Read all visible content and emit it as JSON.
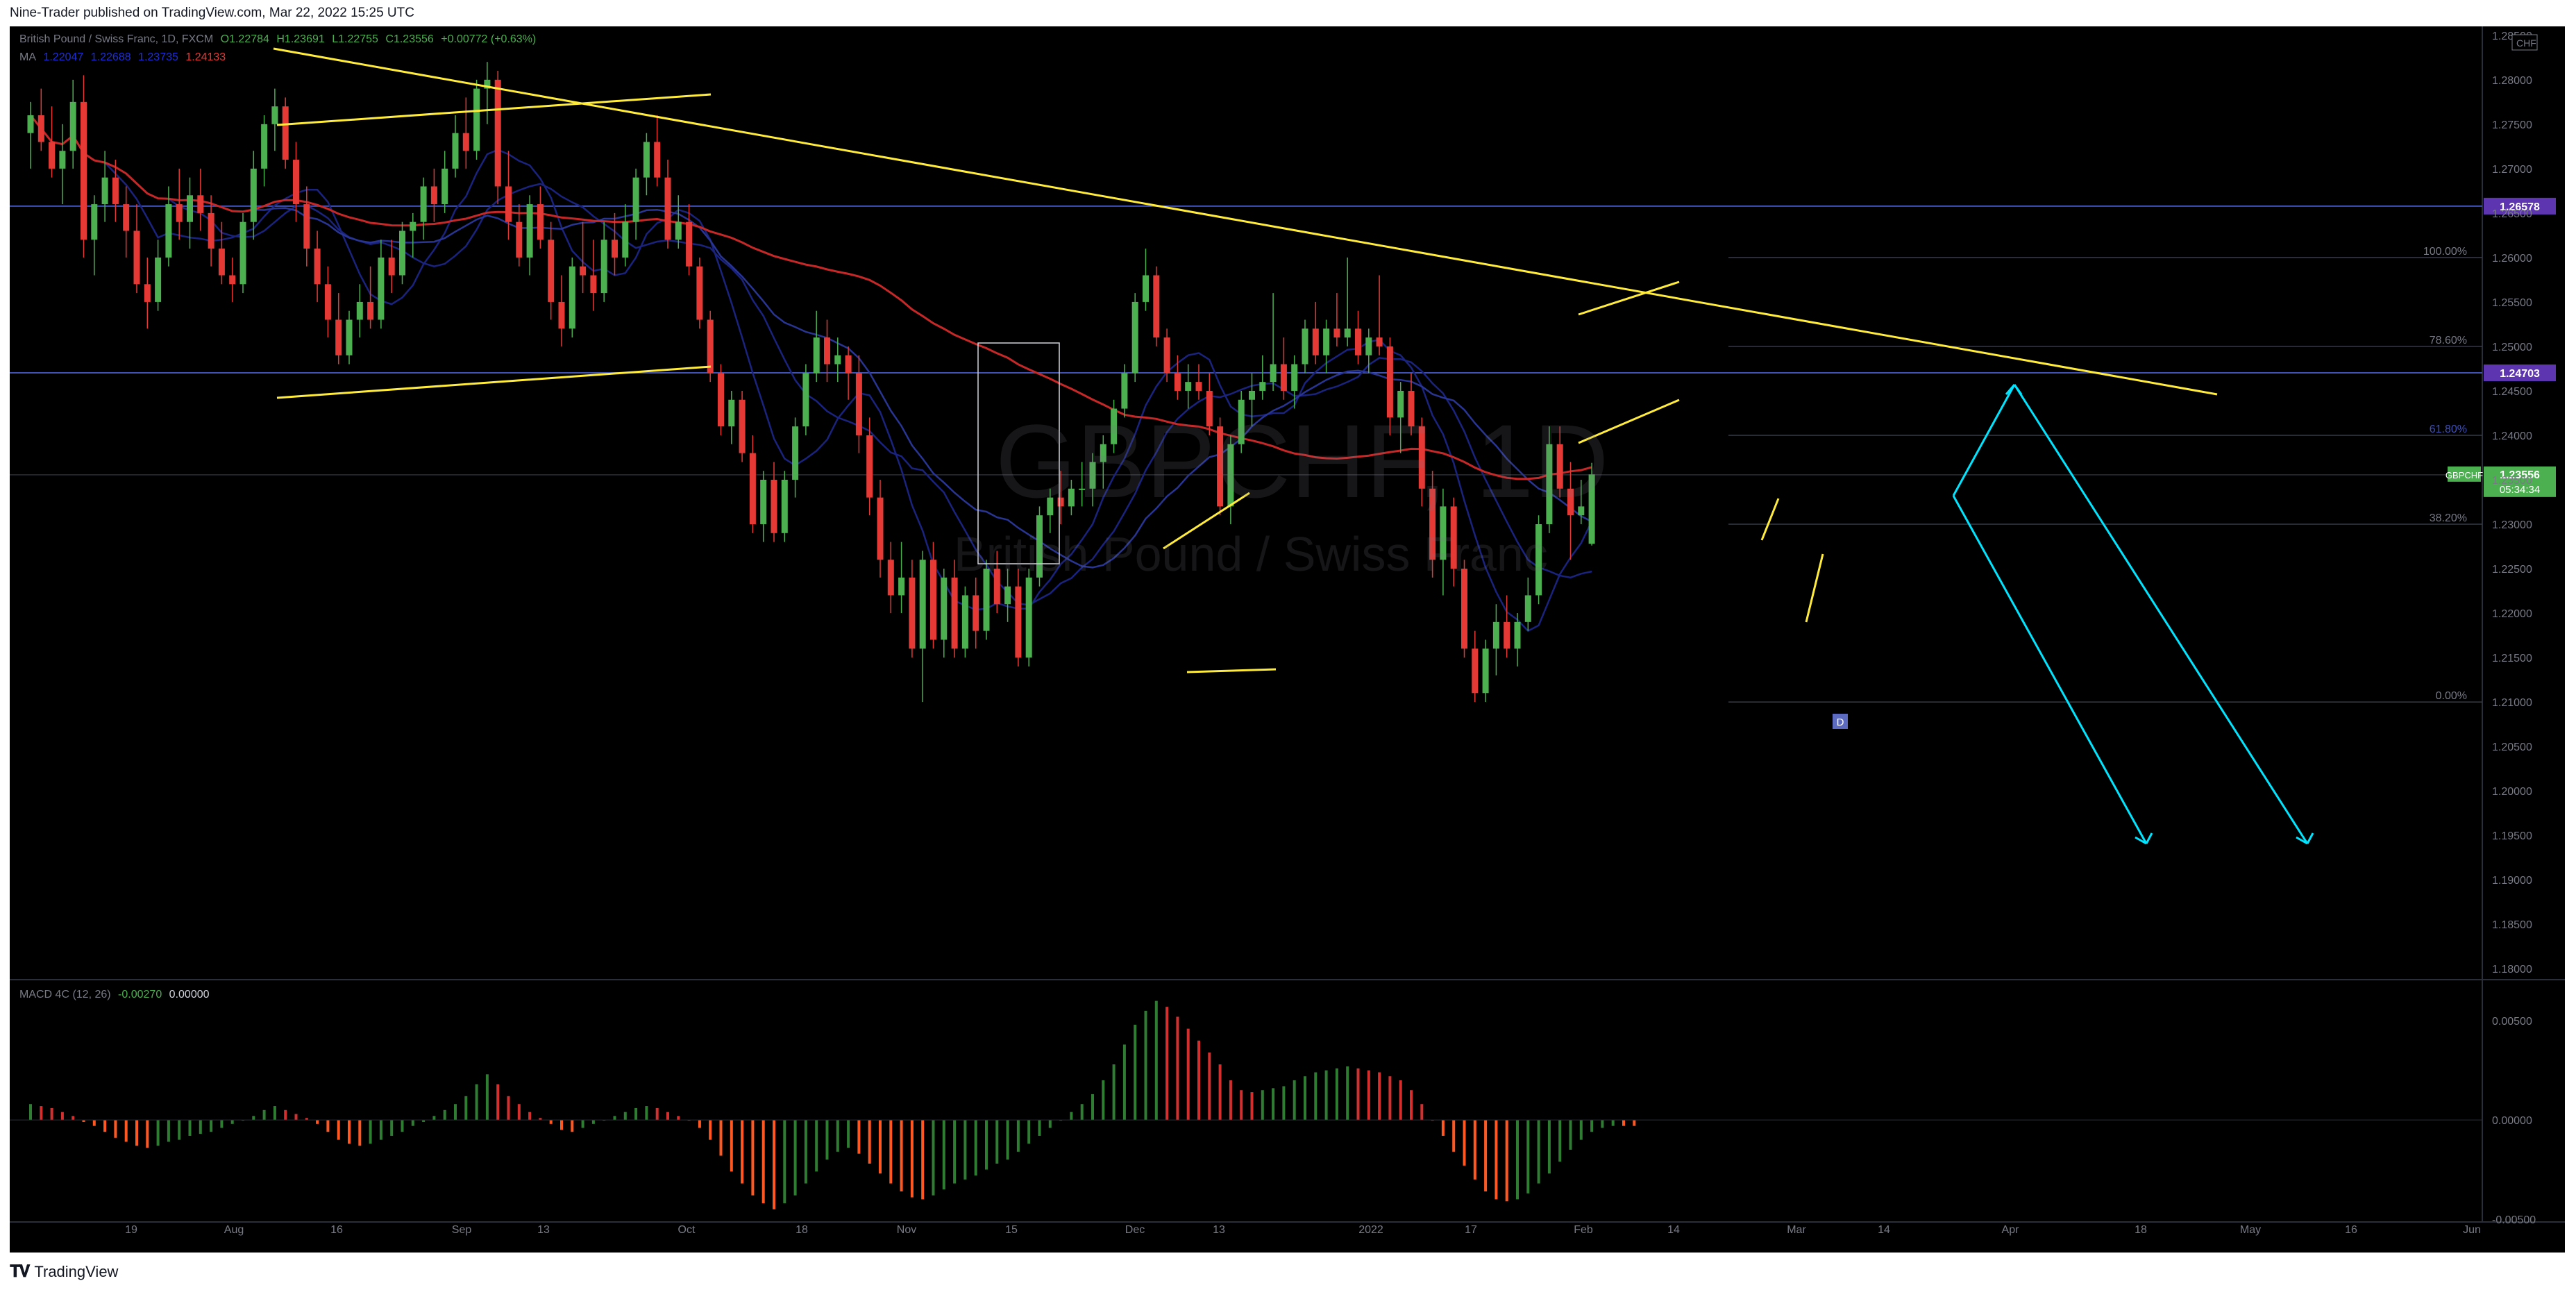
{
  "header": {
    "published_by": "Nine-Trader published on TradingView.com, Mar 22, 2022 15:25 UTC"
  },
  "legend": {
    "title": "British Pound / Swiss Franc, 1D, FXCM",
    "ohlc": {
      "o": "O1.22784",
      "h": "H1.23691",
      "l": "L1.22755",
      "c": "C1.23556",
      "chg": "+0.00772 (+0.63%)"
    },
    "ma_label": "MA",
    "ma_values": [
      {
        "text": "1.22047",
        "color": "#1e2fd6"
      },
      {
        "text": "1.22688",
        "color": "#1e2fd6"
      },
      {
        "text": "1.23735",
        "color": "#1e2fd6"
      },
      {
        "text": "1.24133",
        "color": "#e53935"
      }
    ],
    "macd_label": "MACD 4C (12, 26)",
    "macd_val1": "-0.00270",
    "macd_val2": "0.00000"
  },
  "watermark": {
    "symbol": "GBPCHF, 1D",
    "description": "British Pound / Swiss Franc"
  },
  "footer": {
    "brand": "TradingView"
  },
  "colors": {
    "up": "#4caf50",
    "down": "#e53935",
    "trendline": "#ffeb3b",
    "projection": "#00e5ff",
    "ma200": "#c62828",
    "ma_blue": "#1a237e",
    "level_line": "#3f51b5",
    "price_tag": "#4caf50",
    "level_tag": "#5e35b1",
    "macd_pos_up": "#2e7d32",
    "macd_pos_down": "#d32f2f",
    "macd_neg_down": "#ff5722",
    "macd_neg_up": "#2e7d32"
  },
  "chart_data": {
    "type": "candlestick",
    "symbol": "GBPCHF",
    "title": "British Pound / Swiss Franc, 1D, FXCM",
    "timeframe": "1D",
    "price_axis": {
      "ticks": [
        "1.28500",
        "1.28000",
        "1.27500",
        "1.27000",
        "1.26500",
        "1.26000",
        "1.25500",
        "1.25000",
        "1.24500",
        "1.24000",
        "1.23500",
        "1.23000",
        "1.22500",
        "1.22000",
        "1.21500",
        "1.21000",
        "1.20500",
        "1.20000",
        "1.19500",
        "1.19000",
        "1.18500",
        "1.18000"
      ],
      "currency": "CHF"
    },
    "time_axis": {
      "labels": [
        "19",
        "Aug",
        "16",
        "Sep",
        "13",
        "Oct",
        "18",
        "Nov",
        "15",
        "Dec",
        "13",
        "2022",
        "17",
        "Feb",
        "14",
        "Mar",
        "14",
        "Apr",
        "18",
        "May",
        "16",
        "Jun"
      ]
    },
    "fibonacci": [
      {
        "level": "100.00%",
        "price": 1.26
      },
      {
        "level": "78.60%",
        "price": 1.25
      },
      {
        "level": "61.80%",
        "price": 1.24
      },
      {
        "level": "38.20%",
        "price": 1.23
      },
      {
        "level": "0.00%",
        "price": 1.21
      }
    ],
    "horizontal_levels": [
      {
        "label": "1.26578",
        "price": 1.26578
      },
      {
        "label": "1.24703",
        "price": 1.24703
      }
    ],
    "last_price": {
      "symbol_tag": "GBPCHF",
      "price": "1.23556",
      "countdown": "05:34:34"
    },
    "point_label": "D",
    "candles": [
      [
        1.274,
        1.2775,
        1.27,
        1.276
      ],
      [
        1.276,
        1.279,
        1.272,
        1.273
      ],
      [
        1.273,
        1.277,
        1.269,
        1.27
      ],
      [
        1.27,
        1.275,
        1.266,
        1.272
      ],
      [
        1.272,
        1.28,
        1.27,
        1.2775
      ],
      [
        1.2775,
        1.2805,
        1.26,
        1.262
      ],
      [
        1.262,
        1.267,
        1.258,
        1.266
      ],
      [
        1.266,
        1.272,
        1.264,
        1.269
      ],
      [
        1.269,
        1.271,
        1.264,
        1.266
      ],
      [
        1.266,
        1.268,
        1.26,
        1.263
      ],
      [
        1.263,
        1.266,
        1.256,
        1.257
      ],
      [
        1.257,
        1.26,
        1.252,
        1.255
      ],
      [
        1.255,
        1.262,
        1.254,
        1.26
      ],
      [
        1.26,
        1.268,
        1.259,
        1.266
      ],
      [
        1.266,
        1.27,
        1.262,
        1.264
      ],
      [
        1.264,
        1.269,
        1.261,
        1.267
      ],
      [
        1.267,
        1.27,
        1.263,
        1.265
      ],
      [
        1.265,
        1.267,
        1.259,
        1.261
      ],
      [
        1.261,
        1.264,
        1.257,
        1.258
      ],
      [
        1.258,
        1.26,
        1.255,
        1.257
      ],
      [
        1.257,
        1.265,
        1.256,
        1.264
      ],
      [
        1.264,
        1.272,
        1.262,
        1.27
      ],
      [
        1.27,
        1.276,
        1.268,
        1.275
      ],
      [
        1.275,
        1.279,
        1.272,
        1.277
      ],
      [
        1.277,
        1.278,
        1.27,
        1.271
      ],
      [
        1.271,
        1.273,
        1.264,
        1.266
      ],
      [
        1.266,
        1.268,
        1.259,
        1.261
      ],
      [
        1.261,
        1.263,
        1.255,
        1.257
      ],
      [
        1.257,
        1.259,
        1.251,
        1.253
      ],
      [
        1.253,
        1.256,
        1.248,
        1.249
      ],
      [
        1.249,
        1.254,
        1.248,
        1.253
      ],
      [
        1.253,
        1.257,
        1.251,
        1.255
      ],
      [
        1.255,
        1.259,
        1.252,
        1.253
      ],
      [
        1.253,
        1.262,
        1.252,
        1.26
      ],
      [
        1.26,
        1.262,
        1.256,
        1.258
      ],
      [
        1.258,
        1.264,
        1.257,
        1.263
      ],
      [
        1.263,
        1.265,
        1.26,
        1.264
      ],
      [
        1.264,
        1.269,
        1.262,
        1.268
      ],
      [
        1.268,
        1.27,
        1.264,
        1.266
      ],
      [
        1.266,
        1.272,
        1.265,
        1.27
      ],
      [
        1.27,
        1.276,
        1.269,
        1.274
      ],
      [
        1.274,
        1.278,
        1.27,
        1.272
      ],
      [
        1.272,
        1.28,
        1.271,
        1.279
      ],
      [
        1.279,
        1.282,
        1.275,
        1.28
      ],
      [
        1.28,
        1.281,
        1.266,
        1.268
      ],
      [
        1.268,
        1.272,
        1.262,
        1.264
      ],
      [
        1.264,
        1.266,
        1.259,
        1.26
      ],
      [
        1.26,
        1.267,
        1.258,
        1.266
      ],
      [
        1.266,
        1.268,
        1.261,
        1.262
      ],
      [
        1.262,
        1.264,
        1.253,
        1.255
      ],
      [
        1.255,
        1.258,
        1.25,
        1.252
      ],
      [
        1.252,
        1.26,
        1.251,
        1.259
      ],
      [
        1.259,
        1.264,
        1.256,
        1.258
      ],
      [
        1.258,
        1.262,
        1.254,
        1.256
      ],
      [
        1.256,
        1.264,
        1.255,
        1.262
      ],
      [
        1.262,
        1.265,
        1.258,
        1.26
      ],
      [
        1.26,
        1.266,
        1.259,
        1.264
      ],
      [
        1.264,
        1.27,
        1.262,
        1.269
      ],
      [
        1.269,
        1.274,
        1.267,
        1.273
      ],
      [
        1.273,
        1.276,
        1.268,
        1.269
      ],
      [
        1.269,
        1.271,
        1.261,
        1.262
      ],
      [
        1.262,
        1.267,
        1.261,
        1.264
      ],
      [
        1.264,
        1.266,
        1.258,
        1.259
      ],
      [
        1.259,
        1.26,
        1.252,
        1.253
      ],
      [
        1.253,
        1.254,
        1.246,
        1.247
      ],
      [
        1.247,
        1.248,
        1.24,
        1.241
      ],
      [
        1.241,
        1.245,
        1.239,
        1.244
      ],
      [
        1.244,
        1.245,
        1.237,
        1.238
      ],
      [
        1.238,
        1.24,
        1.229,
        1.23
      ],
      [
        1.23,
        1.236,
        1.228,
        1.235
      ],
      [
        1.235,
        1.237,
        1.228,
        1.229
      ],
      [
        1.229,
        1.236,
        1.228,
        1.235
      ],
      [
        1.235,
        1.242,
        1.233,
        1.241
      ],
      [
        1.241,
        1.248,
        1.24,
        1.247
      ],
      [
        1.247,
        1.254,
        1.246,
        1.251
      ],
      [
        1.251,
        1.253,
        1.246,
        1.248
      ],
      [
        1.248,
        1.251,
        1.246,
        1.249
      ],
      [
        1.249,
        1.25,
        1.244,
        1.247
      ],
      [
        1.247,
        1.249,
        1.238,
        1.24
      ],
      [
        1.24,
        1.242,
        1.231,
        1.233
      ],
      [
        1.233,
        1.235,
        1.224,
        1.226
      ],
      [
        1.226,
        1.228,
        1.22,
        1.222
      ],
      [
        1.222,
        1.228,
        1.22,
        1.224
      ],
      [
        1.224,
        1.226,
        1.215,
        1.216
      ],
      [
        1.216,
        1.227,
        1.21,
        1.226
      ],
      [
        1.226,
        1.228,
        1.216,
        1.217
      ],
      [
        1.217,
        1.225,
        1.215,
        1.224
      ],
      [
        1.224,
        1.226,
        1.215,
        1.216
      ],
      [
        1.216,
        1.223,
        1.215,
        1.222
      ],
      [
        1.222,
        1.224,
        1.216,
        1.218
      ],
      [
        1.218,
        1.226,
        1.217,
        1.225
      ],
      [
        1.225,
        1.227,
        1.22,
        1.221
      ],
      [
        1.221,
        1.225,
        1.219,
        1.223
      ],
      [
        1.223,
        1.225,
        1.214,
        1.215
      ],
      [
        1.215,
        1.225,
        1.214,
        1.224
      ],
      [
        1.224,
        1.232,
        1.223,
        1.231
      ],
      [
        1.231,
        1.234,
        1.229,
        1.233
      ],
      [
        1.233,
        1.236,
        1.23,
        1.232
      ],
      [
        1.232,
        1.235,
        1.231,
        1.234
      ],
      [
        1.234,
        1.237,
        1.232,
        1.234
      ],
      [
        1.234,
        1.238,
        1.232,
        1.237
      ],
      [
        1.237,
        1.24,
        1.234,
        1.239
      ],
      [
        1.239,
        1.244,
        1.238,
        1.243
      ],
      [
        1.243,
        1.248,
        1.242,
        1.247
      ],
      [
        1.247,
        1.256,
        1.246,
        1.255
      ],
      [
        1.255,
        1.261,
        1.254,
        1.258
      ],
      [
        1.258,
        1.259,
        1.25,
        1.251
      ],
      [
        1.251,
        1.252,
        1.246,
        1.247
      ],
      [
        1.247,
        1.249,
        1.244,
        1.245
      ],
      [
        1.245,
        1.248,
        1.243,
        1.246
      ],
      [
        1.246,
        1.248,
        1.244,
        1.245
      ],
      [
        1.245,
        1.247,
        1.24,
        1.241
      ],
      [
        1.241,
        1.242,
        1.231,
        1.232
      ],
      [
        1.232,
        1.24,
        1.23,
        1.239
      ],
      [
        1.239,
        1.245,
        1.238,
        1.244
      ],
      [
        1.244,
        1.247,
        1.241,
        1.245
      ],
      [
        1.245,
        1.249,
        1.244,
        1.246
      ],
      [
        1.246,
        1.256,
        1.245,
        1.248
      ],
      [
        1.248,
        1.251,
        1.244,
        1.245
      ],
      [
        1.245,
        1.249,
        1.243,
        1.248
      ],
      [
        1.248,
        1.253,
        1.247,
        1.252
      ],
      [
        1.252,
        1.255,
        1.248,
        1.249
      ],
      [
        1.249,
        1.253,
        1.247,
        1.252
      ],
      [
        1.252,
        1.256,
        1.25,
        1.251
      ],
      [
        1.251,
        1.26,
        1.25,
        1.252
      ],
      [
        1.252,
        1.254,
        1.248,
        1.249
      ],
      [
        1.249,
        1.252,
        1.247,
        1.251
      ],
      [
        1.251,
        1.258,
        1.249,
        1.25
      ],
      [
        1.25,
        1.251,
        1.24,
        1.242
      ],
      [
        1.242,
        1.246,
        1.238,
        1.245
      ],
      [
        1.245,
        1.247,
        1.24,
        1.241
      ],
      [
        1.241,
        1.242,
        1.232,
        1.234
      ],
      [
        1.234,
        1.236,
        1.224,
        1.226
      ],
      [
        1.226,
        1.234,
        1.222,
        1.232
      ],
      [
        1.232,
        1.233,
        1.223,
        1.225
      ],
      [
        1.225,
        1.226,
        1.215,
        1.216
      ],
      [
        1.216,
        1.218,
        1.21,
        1.211
      ],
      [
        1.211,
        1.217,
        1.21,
        1.216
      ],
      [
        1.216,
        1.221,
        1.213,
        1.219
      ],
      [
        1.219,
        1.222,
        1.215,
        1.216
      ],
      [
        1.216,
        1.22,
        1.214,
        1.219
      ],
      [
        1.219,
        1.224,
        1.218,
        1.222
      ],
      [
        1.222,
        1.231,
        1.221,
        1.23
      ],
      [
        1.23,
        1.241,
        1.229,
        1.239
      ],
      [
        1.239,
        1.241,
        1.233,
        1.234
      ],
      [
        1.234,
        1.237,
        1.226,
        1.231
      ],
      [
        1.231,
        1.235,
        1.23,
        1.232
      ],
      [
        1.2278,
        1.2369,
        1.2276,
        1.2356
      ]
    ],
    "macd_histogram": [
      0.0008,
      0.0007,
      0.0006,
      0.0004,
      0.0002,
      -0.0001,
      -0.0003,
      -0.0006,
      -0.0009,
      -0.0011,
      -0.0013,
      -0.0014,
      -0.0013,
      -0.0011,
      -0.001,
      -0.0008,
      -0.0007,
      -0.0006,
      -0.0004,
      -0.0002,
      0.0,
      0.0002,
      0.0005,
      0.0007,
      0.0005,
      0.0003,
      0.0001,
      -0.0002,
      -0.0006,
      -0.001,
      -0.0012,
      -0.0013,
      -0.0012,
      -0.001,
      -0.0008,
      -0.0006,
      -0.0003,
      -0.0001,
      0.0002,
      0.0005,
      0.0008,
      0.0012,
      0.0018,
      0.0023,
      0.0018,
      0.0012,
      0.0008,
      0.0004,
      0.0001,
      -0.0002,
      -0.0005,
      -0.0006,
      -0.0004,
      -0.0002,
      0.0,
      0.0002,
      0.0004,
      0.0006,
      0.0007,
      0.0006,
      0.0004,
      0.0002,
      0.0,
      -0.0004,
      -0.001,
      -0.0018,
      -0.0026,
      -0.0032,
      -0.0038,
      -0.0042,
      -0.0045,
      -0.0042,
      -0.0038,
      -0.0032,
      -0.0026,
      -0.002,
      -0.0016,
      -0.0014,
      -0.0017,
      -0.0022,
      -0.0027,
      -0.0032,
      -0.0036,
      -0.0039,
      -0.004,
      -0.0038,
      -0.0035,
      -0.0032,
      -0.003,
      -0.0028,
      -0.0025,
      -0.0022,
      -0.002,
      -0.0016,
      -0.0012,
      -0.0008,
      -0.0004,
      0.0,
      0.0004,
      0.0008,
      0.0013,
      0.002,
      0.0028,
      0.0038,
      0.0048,
      0.0055,
      0.006,
      0.0057,
      0.0052,
      0.0046,
      0.004,
      0.0034,
      0.0028,
      0.002,
      0.0015,
      0.0014,
      0.0015,
      0.0016,
      0.0017,
      0.002,
      0.0022,
      0.0024,
      0.0025,
      0.0026,
      0.0027,
      0.0026,
      0.0025,
      0.0024,
      0.0022,
      0.002,
      0.0015,
      0.0008,
      0.0,
      -0.0008,
      -0.0016,
      -0.0023,
      -0.003,
      -0.0036,
      -0.004,
      -0.0041,
      -0.004,
      -0.0037,
      -0.0032,
      -0.0027,
      -0.0021,
      -0.0015,
      -0.001,
      -0.0006,
      -0.0004,
      -0.0003,
      -0.0003,
      -0.0003
    ],
    "macd_axis_ticks": [
      "0.00500",
      "0.00000",
      "-0.00500"
    ]
  }
}
